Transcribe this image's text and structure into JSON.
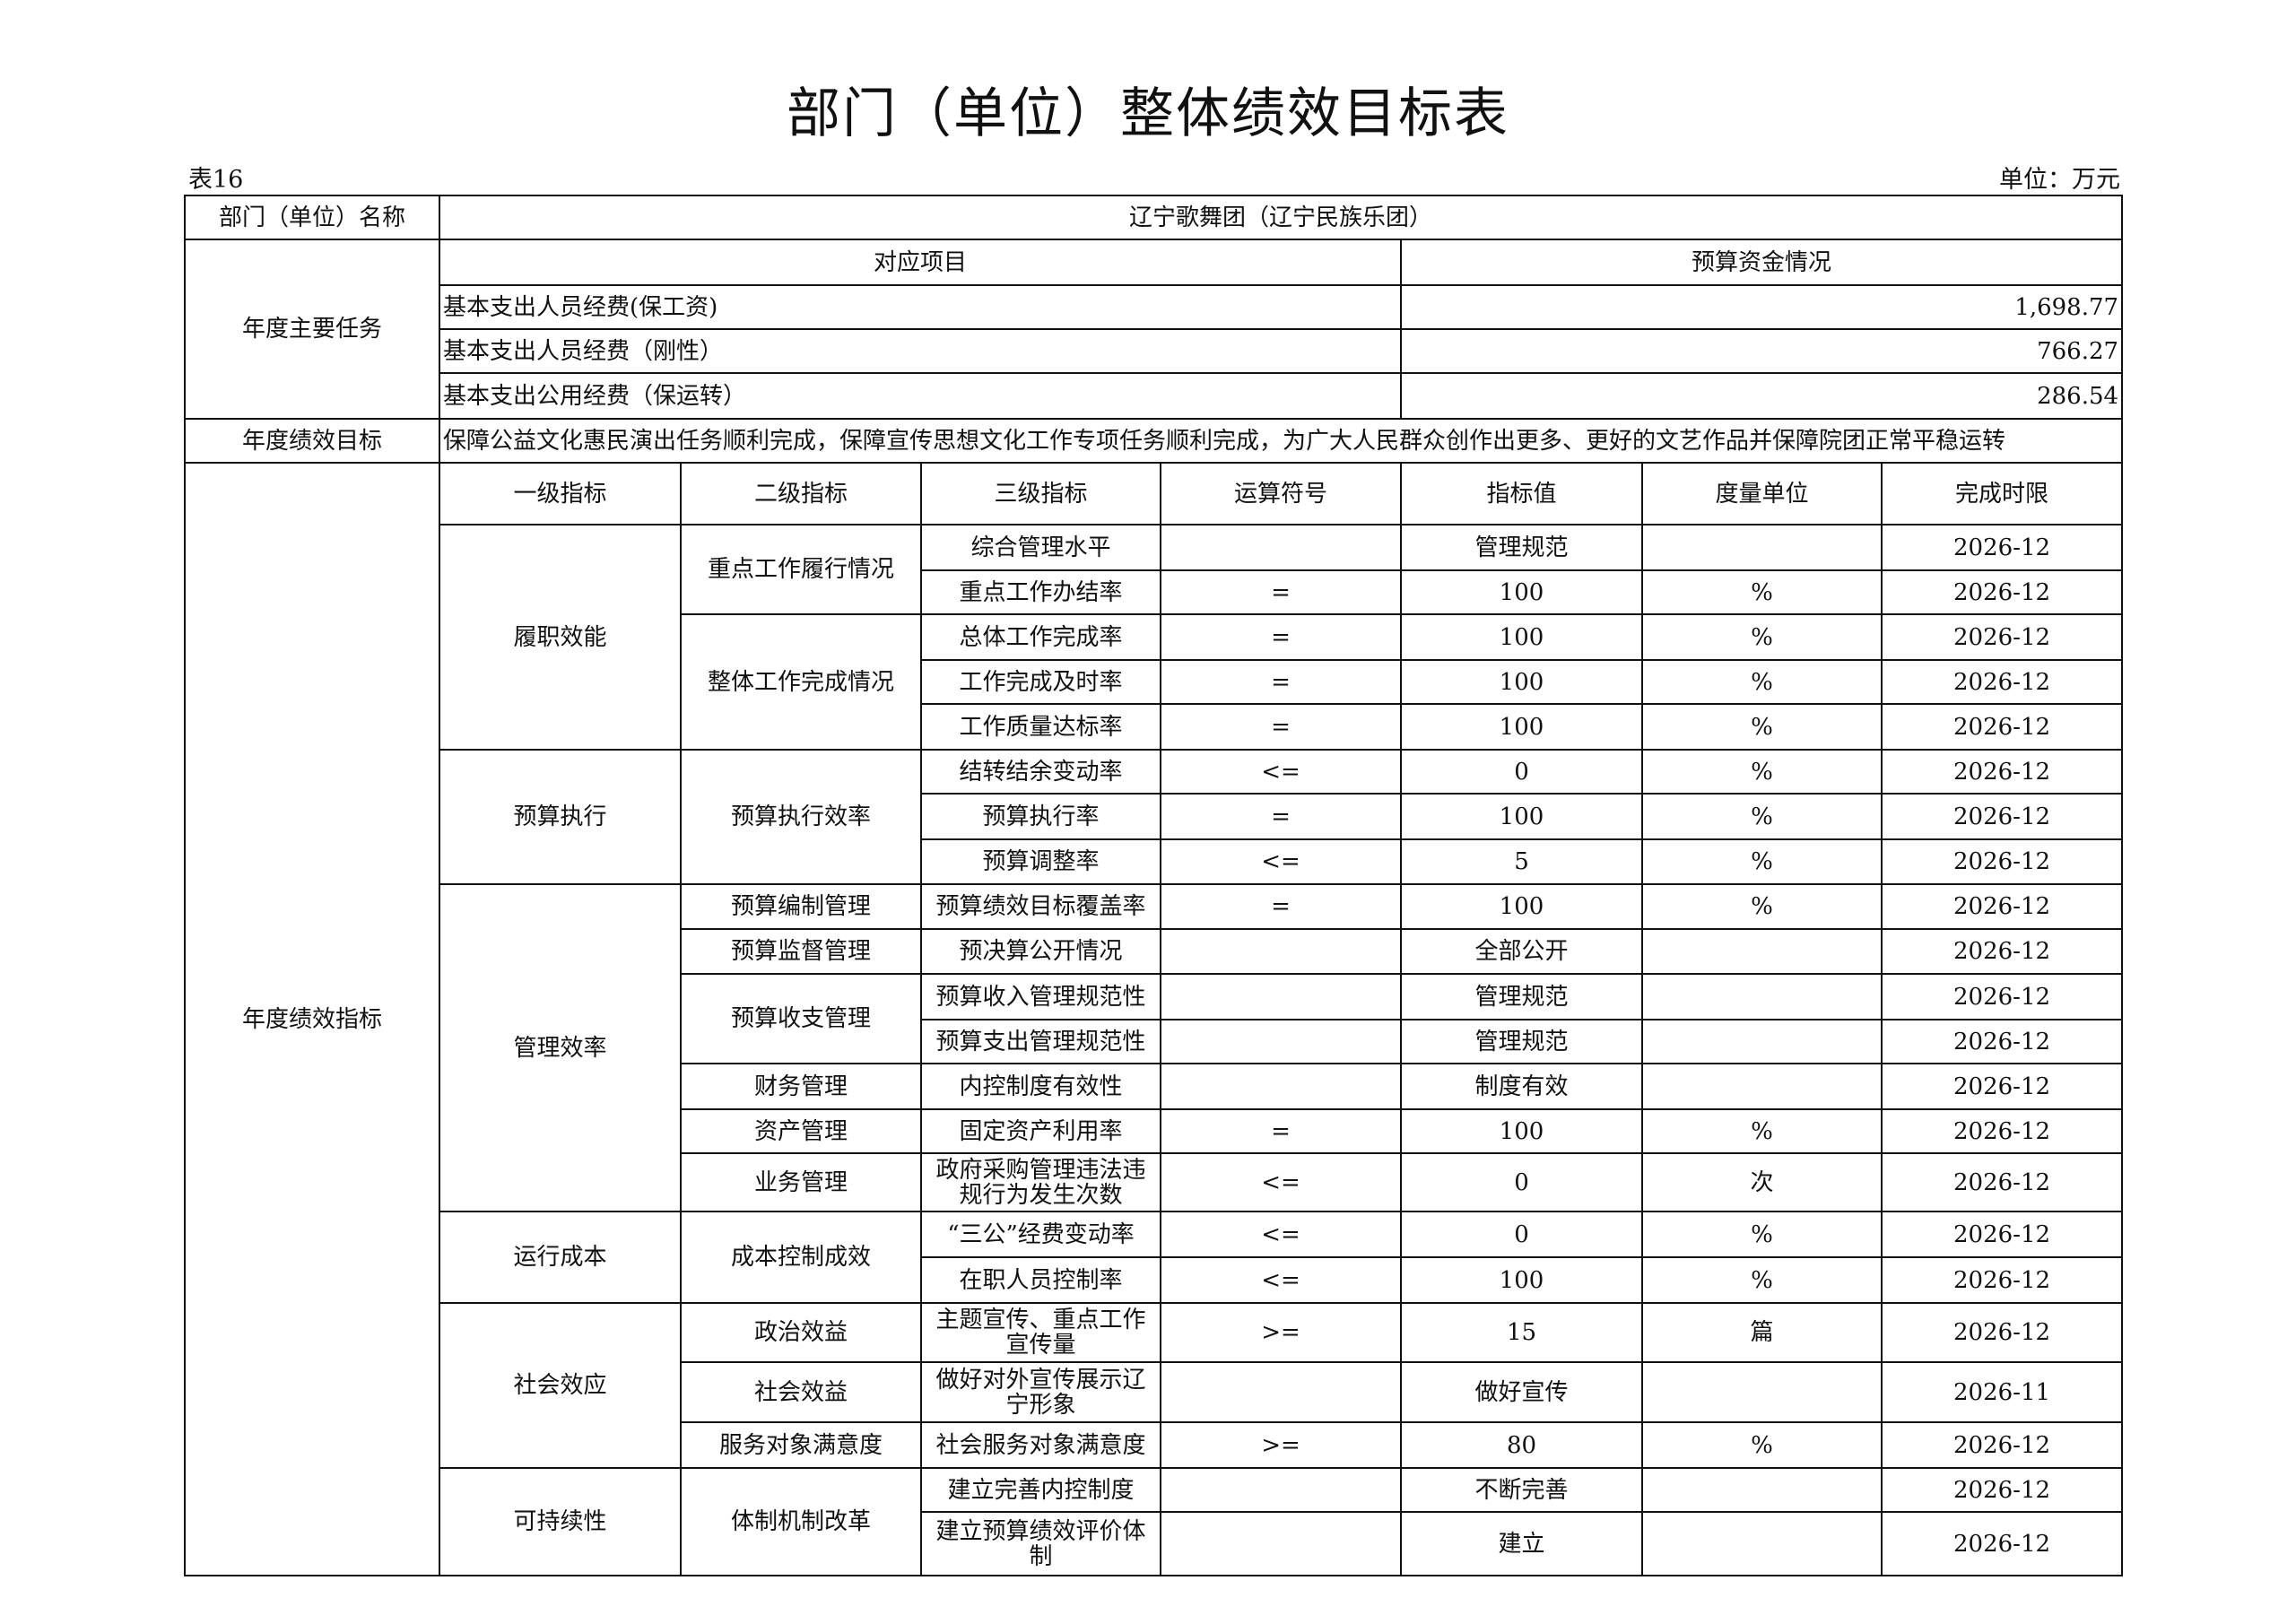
{
  "title": "部门（单位）整体绩效目标表",
  "table_no": "表16",
  "unit": "单位：万元",
  "dept_label": "部门（单位）名称",
  "dept_name": "辽宁歌舞团（辽宁民族乐团）",
  "tasks": {
    "label": "年度主要任务",
    "col_project": "对应项目",
    "col_budget": "预算资金情况",
    "items": [
      {
        "project": "基本支出人员经费(保工资)",
        "budget": "1,698.77"
      },
      {
        "project": "基本支出人员经费（刚性）",
        "budget": "766.27"
      },
      {
        "project": "基本支出公用经费（保运转）",
        "budget": "286.54"
      }
    ]
  },
  "goal": {
    "label": "年度绩效目标",
    "text": "保障公益文化惠民演出任务顺利完成，保障宣传思想文化工作专项任务顺利完成，为广大人民群众创作出更多、更好的文艺作品并保障院团正常平稳运转"
  },
  "indicators": {
    "label": "年度绩效指标",
    "headers": [
      "一级指标",
      "二级指标",
      "三级指标",
      "运算符号",
      "指标值",
      "度量单位",
      "完成时限"
    ],
    "rows": [
      [
        "履职效能",
        "重点工作履行情况",
        "综合管理水平",
        "",
        "管理规范",
        "",
        "2026-12"
      ],
      [
        "履职效能",
        "重点工作履行情况",
        "重点工作办结率",
        "=",
        "100",
        "%",
        "2026-12"
      ],
      [
        "履职效能",
        "整体工作完成情况",
        "总体工作完成率",
        "=",
        "100",
        "%",
        "2026-12"
      ],
      [
        "履职效能",
        "整体工作完成情况",
        "工作完成及时率",
        "=",
        "100",
        "%",
        "2026-12"
      ],
      [
        "履职效能",
        "整体工作完成情况",
        "工作质量达标率",
        "=",
        "100",
        "%",
        "2026-12"
      ],
      [
        "预算执行",
        "预算执行效率",
        "结转结余变动率",
        "<=",
        "0",
        "%",
        "2026-12"
      ],
      [
        "预算执行",
        "预算执行效率",
        "预算执行率",
        "=",
        "100",
        "%",
        "2026-12"
      ],
      [
        "预算执行",
        "预算执行效率",
        "预算调整率",
        "<=",
        "5",
        "%",
        "2026-12"
      ],
      [
        "管理效率",
        "预算编制管理",
        "预算绩效目标覆盖率",
        "=",
        "100",
        "%",
        "2026-12"
      ],
      [
        "管理效率",
        "预算监督管理",
        "预决算公开情况",
        "",
        "全部公开",
        "",
        "2026-12"
      ],
      [
        "管理效率",
        "预算收支管理",
        "预算收入管理规范性",
        "",
        "管理规范",
        "",
        "2026-12"
      ],
      [
        "管理效率",
        "预算收支管理",
        "预算支出管理规范性",
        "",
        "管理规范",
        "",
        "2026-12"
      ],
      [
        "管理效率",
        "财务管理",
        "内控制度有效性",
        "",
        "制度有效",
        "",
        "2026-12"
      ],
      [
        "管理效率",
        "资产管理",
        "固定资产利用率",
        "=",
        "100",
        "%",
        "2026-12"
      ],
      [
        "管理效率",
        "业务管理",
        "政府采购管理违法违规行为发生次数",
        "<=",
        "0",
        "次",
        "2026-12"
      ],
      [
        "运行成本",
        "成本控制成效",
        "“三公”经费变动率",
        "<=",
        "0",
        "%",
        "2026-12"
      ],
      [
        "运行成本",
        "成本控制成效",
        "在职人员控制率",
        "<=",
        "100",
        "%",
        "2026-12"
      ],
      [
        "社会效应",
        "政治效益",
        "主题宣传、重点工作宣传量",
        ">=",
        "15",
        "篇",
        "2026-12"
      ],
      [
        "社会效应",
        "社会效益",
        "做好对外宣传展示辽宁形象",
        "",
        "做好宣传",
        "",
        "2026-11"
      ],
      [
        "社会效应",
        "服务对象满意度",
        "社会服务对象满意度",
        ">=",
        "80",
        "%",
        "2026-12"
      ],
      [
        "可持续性",
        "体制机制改革",
        "建立完善内控制度",
        "",
        "不断完善",
        "",
        "2026-12"
      ],
      [
        "可持续性",
        "体制机制改革",
        "建立预算绩效评价体制",
        "",
        "建立",
        "",
        "2026-12"
      ]
    ]
  }
}
